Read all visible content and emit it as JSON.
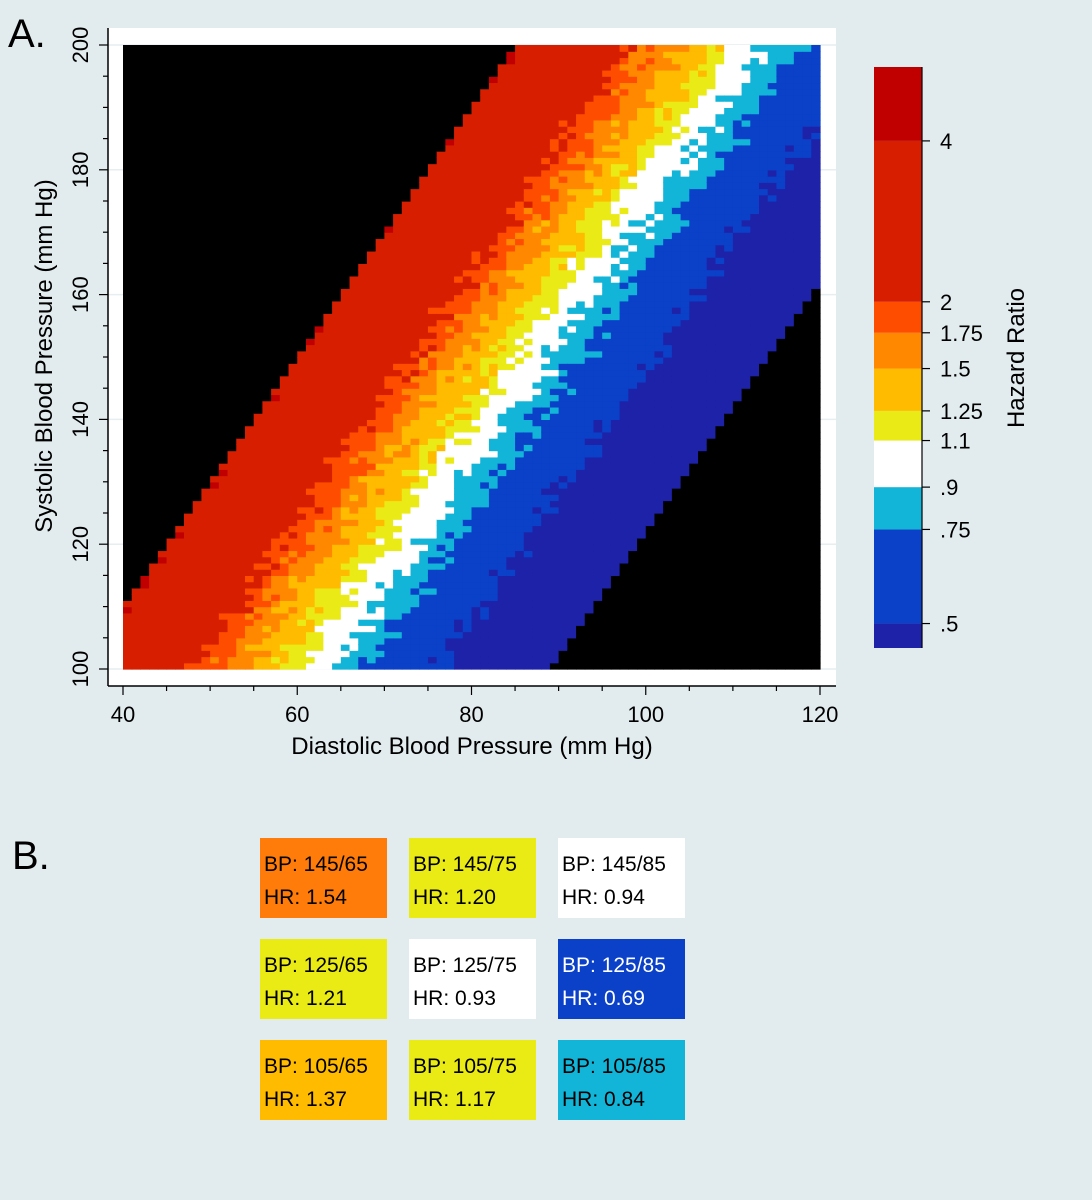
{
  "panel_a_label": "A.",
  "panel_b_label": "B.",
  "chart_data": {
    "type": "heatmap",
    "xlabel": "Diastolic Blood Pressure (mm Hg)",
    "ylabel": "Systolic Blood Pressure (mm Hg)",
    "xlim": [
      40,
      120
    ],
    "ylim": [
      100,
      200
    ],
    "xticks": [
      40,
      60,
      80,
      100,
      120
    ],
    "yticks": [
      100,
      120,
      140,
      160,
      180,
      200
    ],
    "grid": true,
    "colorbar": {
      "title": "Hazard Ratio",
      "scale": "log",
      "range": [
        0.45,
        5.5
      ],
      "tick_labels": [
        "4",
        "2",
        "1.75",
        "1.5",
        "1.25",
        "1.1",
        ".9",
        ".75",
        ".5"
      ],
      "tick_values": [
        4,
        2,
        1.75,
        1.5,
        1.25,
        1.1,
        0.9,
        0.75,
        0.5
      ],
      "bins": [
        {
          "from": 0.45,
          "to": 0.5,
          "color": "#1e22a8"
        },
        {
          "from": 0.5,
          "to": 0.75,
          "color": "#0a41c8"
        },
        {
          "from": 0.75,
          "to": 0.9,
          "color": "#12b4d8"
        },
        {
          "from": 0.9,
          "to": 1.1,
          "color": "#ffffff"
        },
        {
          "from": 1.1,
          "to": 1.25,
          "color": "#eaea16"
        },
        {
          "from": 1.25,
          "to": 1.5,
          "color": "#ffbb00"
        },
        {
          "from": 1.5,
          "to": 1.75,
          "color": "#ff8800"
        },
        {
          "from": 1.75,
          "to": 2,
          "color": "#ff4d00"
        },
        {
          "from": 2,
          "to": 4,
          "color": "#d81e00"
        },
        {
          "from": 4,
          "to": 5.5,
          "color": "#c00000"
        }
      ]
    },
    "no_data_color": "#000000"
  },
  "panel_b_tiles": [
    {
      "bp": "BP: 145/65",
      "hr": "HR: 1.54",
      "color": "#ff7c0a",
      "text_color": "#000000"
    },
    {
      "bp": "BP: 145/75",
      "hr": "HR: 1.20",
      "color": "#eaea14",
      "text_color": "#000000"
    },
    {
      "bp": "BP: 145/85",
      "hr": "HR: 0.94",
      "color": "#ffffff",
      "text_color": "#000000"
    },
    {
      "bp": "BP: 125/65",
      "hr": "HR: 1.21",
      "color": "#eaea14",
      "text_color": "#000000"
    },
    {
      "bp": "BP: 125/75",
      "hr": "HR: 0.93",
      "color": "#ffffff",
      "text_color": "#000000"
    },
    {
      "bp": "BP: 125/85",
      "hr": "HR: 0.69",
      "color": "#0a41c8",
      "text_color": "#ffffff"
    },
    {
      "bp": "BP: 105/65",
      "hr": "HR: 1.37",
      "color": "#ffbb00",
      "text_color": "#000000"
    },
    {
      "bp": "BP: 105/75",
      "hr": "HR: 1.17",
      "color": "#eaea14",
      "text_color": "#000000"
    },
    {
      "bp": "BP: 105/85",
      "hr": "HR: 0.84",
      "color": "#12b4d8",
      "text_color": "#000000"
    }
  ]
}
